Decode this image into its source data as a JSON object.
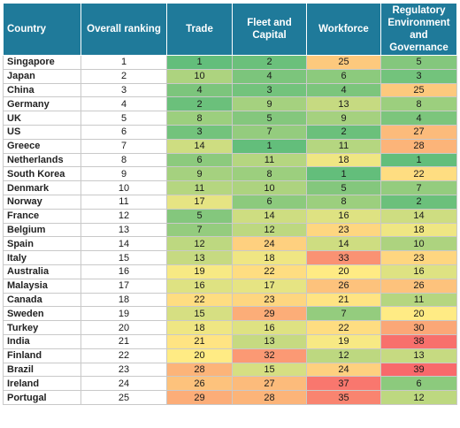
{
  "chart_data": {
    "type": "table",
    "columns": [
      "Country",
      "Overall ranking",
      "Trade",
      "Fleet and Capital",
      "Workforce",
      "Regulatory Environment and Governance"
    ],
    "rows": [
      {
        "country": "Singapore",
        "overall": 1,
        "trade": 1,
        "fleet": 2,
        "workforce": 25,
        "regulatory": 5
      },
      {
        "country": "Japan",
        "overall": 2,
        "trade": 10,
        "fleet": 4,
        "workforce": 6,
        "regulatory": 3
      },
      {
        "country": "China",
        "overall": 3,
        "trade": 4,
        "fleet": 3,
        "workforce": 4,
        "regulatory": 25
      },
      {
        "country": "Germany",
        "overall": 4,
        "trade": 2,
        "fleet": 9,
        "workforce": 13,
        "regulatory": 8
      },
      {
        "country": "UK",
        "overall": 5,
        "trade": 8,
        "fleet": 5,
        "workforce": 9,
        "regulatory": 4
      },
      {
        "country": "US",
        "overall": 6,
        "trade": 3,
        "fleet": 7,
        "workforce": 2,
        "regulatory": 27
      },
      {
        "country": "Greece",
        "overall": 7,
        "trade": 14,
        "fleet": 1,
        "workforce": 11,
        "regulatory": 28
      },
      {
        "country": "Netherlands",
        "overall": 8,
        "trade": 6,
        "fleet": 11,
        "workforce": 18,
        "regulatory": 1
      },
      {
        "country": "South Korea",
        "overall": 9,
        "trade": 9,
        "fleet": 8,
        "workforce": 1,
        "regulatory": 22
      },
      {
        "country": "Denmark",
        "overall": 10,
        "trade": 11,
        "fleet": 10,
        "workforce": 5,
        "regulatory": 7
      },
      {
        "country": "Norway",
        "overall": 11,
        "trade": 17,
        "fleet": 6,
        "workforce": 8,
        "regulatory": 2
      },
      {
        "country": "France",
        "overall": 12,
        "trade": 5,
        "fleet": 14,
        "workforce": 16,
        "regulatory": 14
      },
      {
        "country": "Belgium",
        "overall": 13,
        "trade": 7,
        "fleet": 12,
        "workforce": 23,
        "regulatory": 18
      },
      {
        "country": "Spain",
        "overall": 14,
        "trade": 12,
        "fleet": 24,
        "workforce": 14,
        "regulatory": 10
      },
      {
        "country": "Italy",
        "overall": 15,
        "trade": 13,
        "fleet": 18,
        "workforce": 33,
        "regulatory": 23
      },
      {
        "country": "Australia",
        "overall": 16,
        "trade": 19,
        "fleet": 22,
        "workforce": 20,
        "regulatory": 16
      },
      {
        "country": "Malaysia",
        "overall": 17,
        "trade": 16,
        "fleet": 17,
        "workforce": 26,
        "regulatory": 26
      },
      {
        "country": "Canada",
        "overall": 18,
        "trade": 22,
        "fleet": 23,
        "workforce": 21,
        "regulatory": 11
      },
      {
        "country": "Sweden",
        "overall": 19,
        "trade": 15,
        "fleet": 29,
        "workforce": 7,
        "regulatory": 20
      },
      {
        "country": "Turkey",
        "overall": 20,
        "trade": 18,
        "fleet": 16,
        "workforce": 22,
        "regulatory": 30
      },
      {
        "country": "India",
        "overall": 21,
        "trade": 21,
        "fleet": 13,
        "workforce": 19,
        "regulatory": 38
      },
      {
        "country": "Finland",
        "overall": 22,
        "trade": 20,
        "fleet": 32,
        "workforce": 12,
        "regulatory": 13
      },
      {
        "country": "Brazil",
        "overall": 23,
        "trade": 28,
        "fleet": 15,
        "workforce": 24,
        "regulatory": 39
      },
      {
        "country": "Ireland",
        "overall": 24,
        "trade": 26,
        "fleet": 27,
        "workforce": 37,
        "regulatory": 6
      },
      {
        "country": "Portugal",
        "overall": 25,
        "trade": 29,
        "fleet": 28,
        "workforce": 35,
        "regulatory": 12
      }
    ],
    "color_scale": {
      "low_value_color": "#63be7b",
      "mid_value_color": "#ffeb84",
      "high_value_color": "#f8696b",
      "min": 1,
      "mid": 20,
      "max": 39
    },
    "header_color": "#1f7a9a"
  }
}
